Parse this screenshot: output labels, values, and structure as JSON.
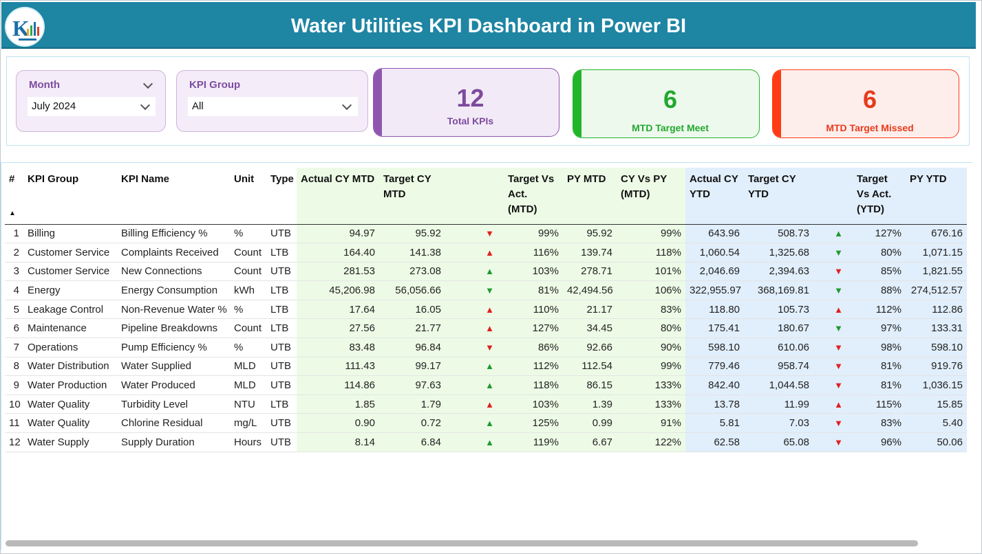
{
  "header": {
    "title": "Water Utilities KPI Dashboard in Power BI"
  },
  "filters": {
    "month": {
      "label": "Month",
      "value": "July 2024"
    },
    "kpi_group": {
      "label": "KPI Group",
      "value": "All"
    }
  },
  "cards": [
    {
      "value": "12",
      "label": "Total KPIs",
      "color": "#7e4a9e",
      "bg": "#f2ebf7",
      "bar": "#8f56b0"
    },
    {
      "value": "6",
      "label": "MTD Target Meet",
      "color": "#22a82e",
      "bg": "#eef9ee",
      "bar": "#22b52a"
    },
    {
      "value": "6",
      "label": "MTD Target Missed",
      "color": "#e83a1a",
      "bg": "#fdeeec",
      "bar": "#ff3b14"
    }
  ],
  "table": {
    "headers": [
      "#",
      "KPI Group",
      "KPI Name",
      "Unit",
      "Type",
      "Actual CY MTD",
      "Target CY MTD",
      "",
      "Target Vs Act. (MTD)",
      "PY MTD",
      "CY Vs PY (MTD)",
      "Actual CY YTD",
      "Target CY YTD",
      "",
      "Target Vs Act. (YTD)",
      "PY YTD"
    ],
    "sort_indicator": "▲",
    "rows": [
      [
        "1",
        "Billing",
        "Billing Efficiency %",
        "%",
        "UTB",
        "94.97",
        "95.92",
        "down",
        "99%",
        "95.92",
        "99%",
        "643.96",
        "508.73",
        "up",
        "127%",
        "676.16"
      ],
      [
        "2",
        "Customer Service",
        "Complaints Received",
        "Count",
        "LTB",
        "164.40",
        "141.38",
        "up",
        "116%",
        "139.74",
        "118%",
        "1,060.54",
        "1,325.68",
        "down",
        "80%",
        "1,071.15"
      ],
      [
        "3",
        "Customer Service",
        "New Connections",
        "Count",
        "UTB",
        "281.53",
        "273.08",
        "up",
        "103%",
        "278.71",
        "101%",
        "2,046.69",
        "2,394.63",
        "down",
        "85%",
        "1,821.55"
      ],
      [
        "4",
        "Energy",
        "Energy Consumption",
        "kWh",
        "LTB",
        "45,206.98",
        "56,056.66",
        "down",
        "81%",
        "42,494.56",
        "106%",
        "322,955.97",
        "368,169.81",
        "down",
        "88%",
        "274,512.57"
      ],
      [
        "5",
        "Leakage Control",
        "Non-Revenue Water %",
        "%",
        "LTB",
        "17.64",
        "16.05",
        "up",
        "110%",
        "21.17",
        "83%",
        "118.80",
        "105.73",
        "up",
        "112%",
        "112.86"
      ],
      [
        "6",
        "Maintenance",
        "Pipeline Breakdowns",
        "Count",
        "LTB",
        "27.56",
        "21.77",
        "up",
        "127%",
        "34.45",
        "80%",
        "175.41",
        "180.67",
        "down",
        "97%",
        "133.31"
      ],
      [
        "7",
        "Operations",
        "Pump Efficiency %",
        "%",
        "UTB",
        "83.48",
        "96.84",
        "down",
        "86%",
        "92.66",
        "90%",
        "598.10",
        "610.06",
        "down",
        "98%",
        "598.10"
      ],
      [
        "8",
        "Water Distribution",
        "Water Supplied",
        "MLD",
        "UTB",
        "111.43",
        "99.17",
        "up",
        "112%",
        "112.54",
        "99%",
        "779.46",
        "958.74",
        "down",
        "81%",
        "919.76"
      ],
      [
        "9",
        "Water Production",
        "Water Produced",
        "MLD",
        "UTB",
        "114.86",
        "97.63",
        "up",
        "118%",
        "86.15",
        "133%",
        "842.40",
        "1,044.58",
        "down",
        "81%",
        "1,036.15"
      ],
      [
        "10",
        "Water Quality",
        "Turbidity Level",
        "NTU",
        "LTB",
        "1.85",
        "1.79",
        "up",
        "103%",
        "1.39",
        "133%",
        "13.78",
        "11.99",
        "up",
        "115%",
        "15.85"
      ],
      [
        "11",
        "Water Quality",
        "Chlorine Residual",
        "mg/L",
        "UTB",
        "0.90",
        "0.72",
        "up",
        "125%",
        "0.99",
        "91%",
        "5.81",
        "7.03",
        "down",
        "83%",
        "5.40"
      ],
      [
        "12",
        "Water Supply",
        "Supply Duration",
        "Hours",
        "UTB",
        "8.14",
        "6.84",
        "up",
        "119%",
        "6.67",
        "122%",
        "62.58",
        "65.08",
        "down",
        "96%",
        "50.06"
      ]
    ],
    "status_colors": {
      "good": "#1f9a2e",
      "bad": "#e02020"
    }
  }
}
